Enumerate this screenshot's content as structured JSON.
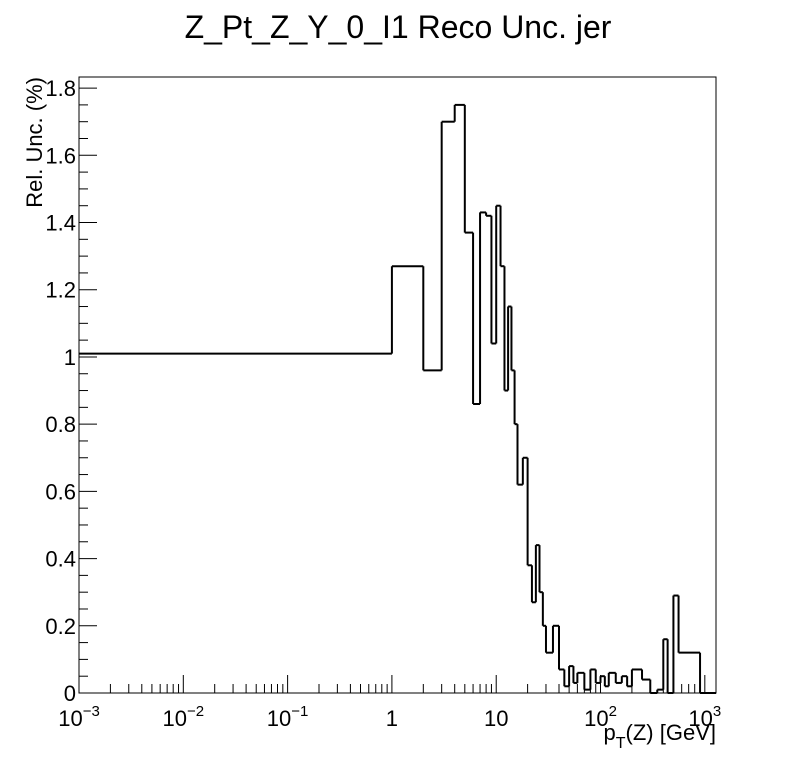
{
  "chart_data": {
    "type": "histogram",
    "title": "Z_Pt_Z_Y_0_I1 Reco Unc. jer",
    "x_label": {
      "base": "p",
      "sub": "T",
      "rest": "(Z) [GeV]"
    },
    "y_label": "Rel. Unc. (%)",
    "log_x": true,
    "color": "#000000",
    "bins": [
      0.001,
      1,
      2,
      3,
      4,
      5,
      6,
      7,
      8,
      9,
      10,
      11,
      12,
      13,
      14,
      15,
      16,
      18,
      20,
      22,
      24,
      26,
      28,
      30,
      35,
      40,
      45,
      50,
      55,
      60,
      70,
      80,
      90,
      100,
      110,
      120,
      140,
      160,
      180,
      200,
      250,
      300,
      350,
      400,
      440,
      500,
      560,
      900,
      1280
    ],
    "values": [
      1.01,
      1.27,
      0.96,
      1.7,
      1.75,
      1.37,
      0.86,
      1.43,
      1.42,
      1.04,
      1.45,
      1.27,
      0.9,
      1.15,
      0.96,
      0.8,
      0.62,
      0.7,
      0.38,
      0.27,
      0.44,
      0.3,
      0.2,
      0.12,
      0.2,
      0.07,
      0.02,
      0.08,
      0.03,
      0.06,
      0.01,
      0.07,
      0.03,
      0.05,
      0.02,
      0.06,
      0.03,
      0.05,
      0.02,
      0.07,
      0.04,
      0,
      0.01,
      0.16,
      0,
      0.29,
      0.12,
      0
    ],
    "xlim": [
      0.001,
      1280
    ],
    "ylim": [
      0,
      1.833
    ],
    "xticks": [
      {
        "value": 0.001,
        "label": "10",
        "exp": "−3"
      },
      {
        "value": 0.01,
        "label": "10",
        "exp": "−2"
      },
      {
        "value": 0.1,
        "label": "10",
        "exp": "−1"
      },
      1,
      10,
      {
        "value": 100,
        "label": "10",
        "exp": "2"
      },
      {
        "value": 1000,
        "label": "10",
        "exp": "3"
      }
    ],
    "yticks": [
      0,
      0.2,
      0.4,
      0.6,
      0.8,
      1,
      1.2,
      1.4,
      1.6,
      1.8
    ]
  }
}
